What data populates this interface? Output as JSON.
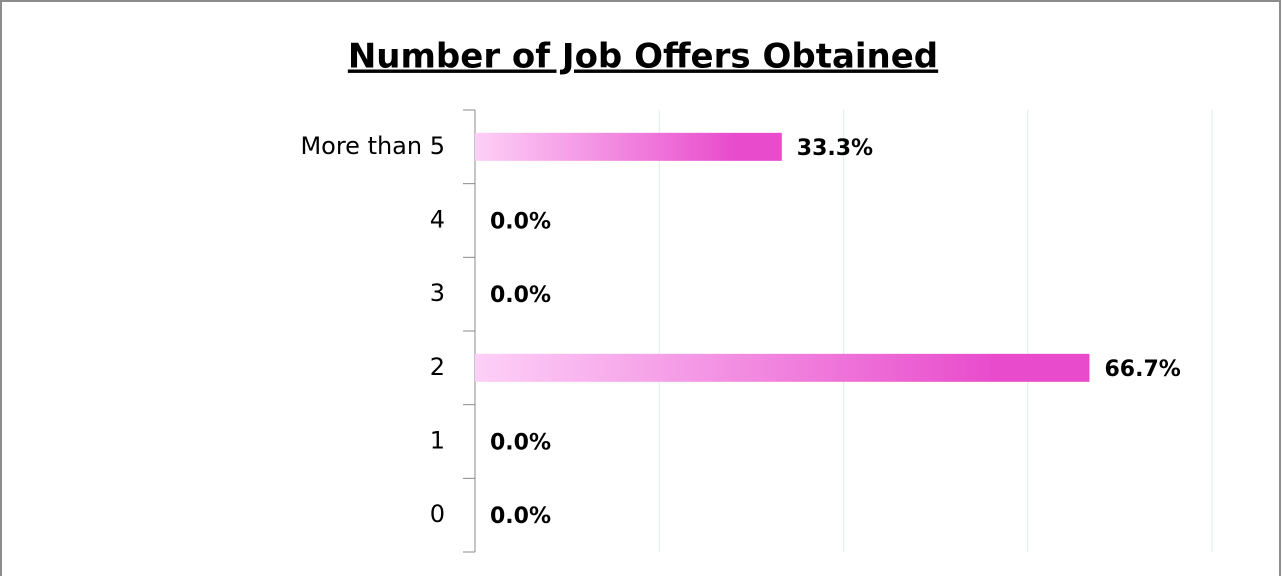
{
  "chart_data": {
    "type": "barh",
    "title": "Number of Job Offers Obtained",
    "categories": [
      "More than 5",
      "4",
      "3",
      "2",
      "1",
      "0"
    ],
    "values": [
      33.3,
      0,
      0,
      66.7,
      0,
      0
    ],
    "value_labels": [
      "33.3%",
      "0.0%",
      "0.0%",
      "66.7%",
      "0.0%",
      "0.0%"
    ],
    "color": [
      "#fdd0f7",
      "#e84bcc"
    ],
    "xlim": [
      0,
      80
    ],
    "xticks": [
      0,
      20,
      40,
      60,
      80
    ],
    "grid": true
  }
}
